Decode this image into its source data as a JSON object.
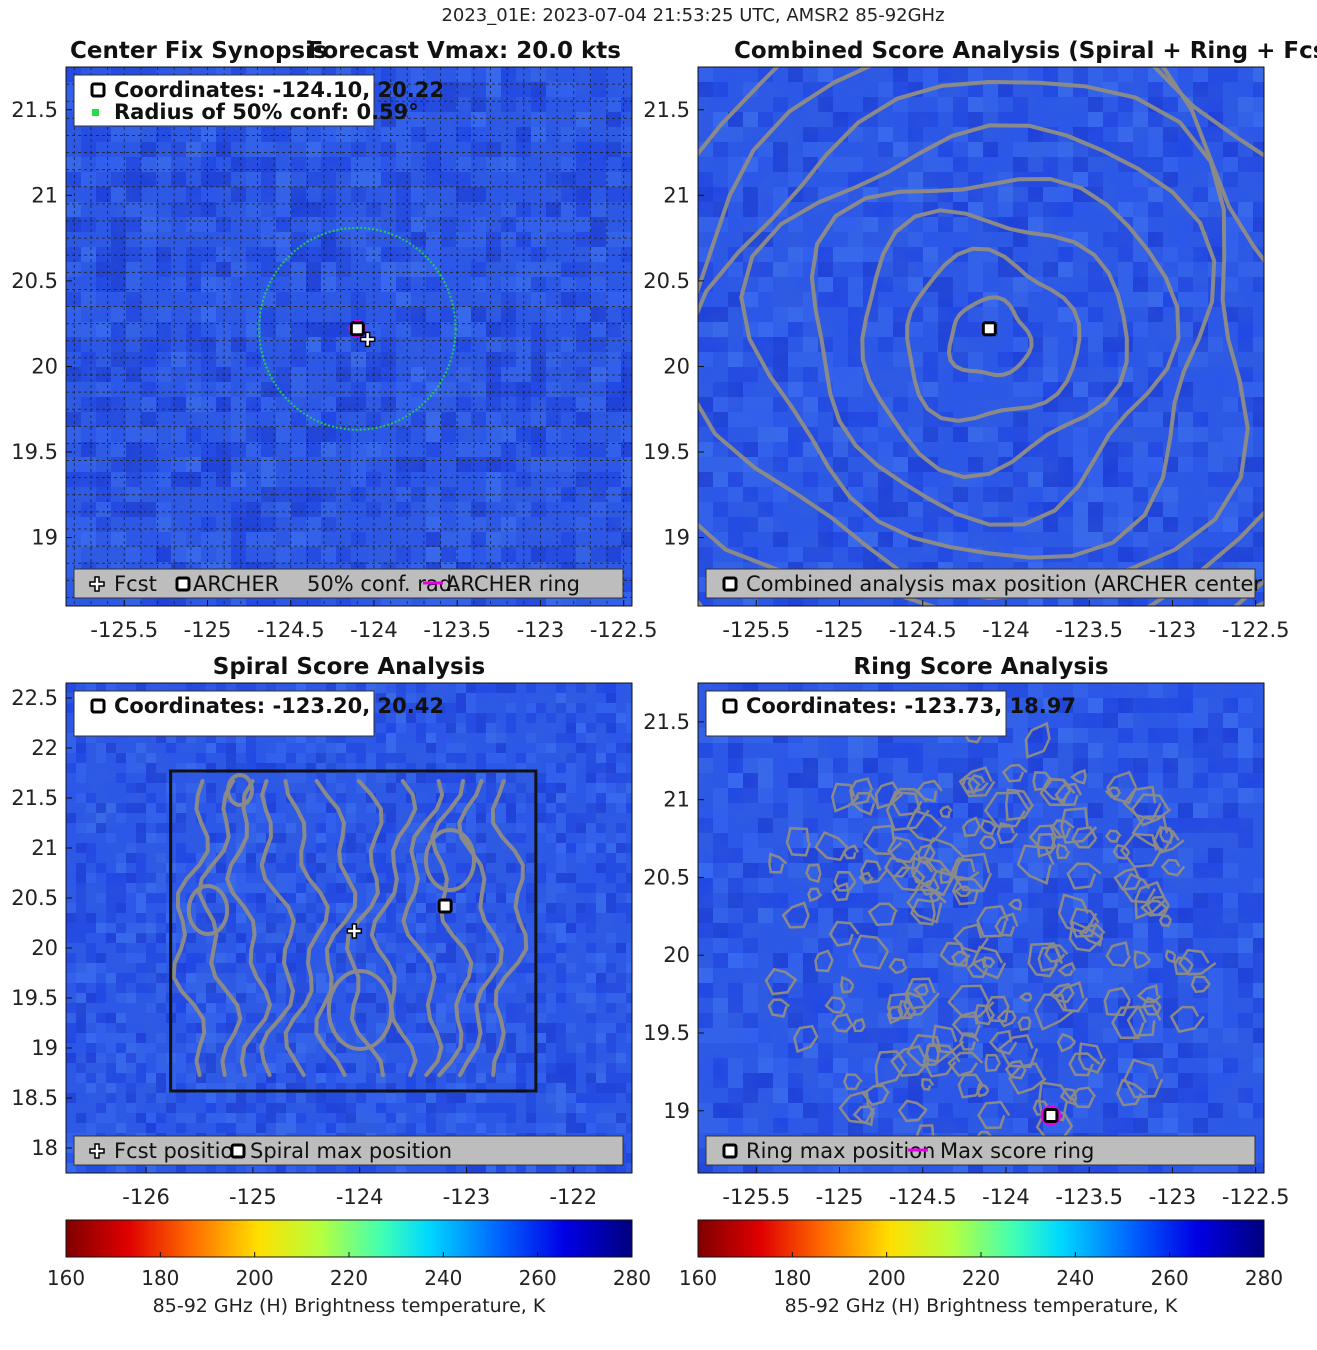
{
  "suptitle": "2023_01E: 2023-07-04 21:53:25 UTC, AMSR2 85-92GHz",
  "colors": {
    "background_tb": "#2a55ec",
    "contour": "#8a8a8a",
    "archer_ring": "#e600e6",
    "conf_circle": "#22cc55",
    "legend_box": "#bdbdbd"
  },
  "chart_data": [
    {
      "id": "center_fix_synopsis",
      "type": "heatmap",
      "title": "Center Fix Synopsis",
      "title_right": "Forecast Vmax: 20.0 kts",
      "xlim": [
        -125.85,
        -122.45
      ],
      "ylim": [
        18.6,
        21.75
      ],
      "x_ticks": [
        -125.5,
        -125,
        -124.5,
        -124,
        -123.5,
        -123,
        -122.5
      ],
      "x_tick_labels": [
        "-125.5",
        "-125",
        "-124.5",
        "-124",
        "-123.5",
        "-123",
        "-122.5"
      ],
      "y_ticks": [
        19,
        19.5,
        20,
        20.5,
        21,
        21.5
      ],
      "y_tick_labels": [
        "19",
        "19.5",
        "20",
        "20.5",
        "21",
        "21.5"
      ],
      "grid": true,
      "info_box": {
        "line1": "Coordinates: -124.10, 20.22",
        "line2": "Radius of 50% conf: 0.59°"
      },
      "legend": {
        "placement": "bottom",
        "items": [
          "Fcst",
          "ARCHER",
          "50% conf. rad.",
          "ARCHER ring"
        ]
      },
      "archer_center": [
        -124.1,
        20.22
      ],
      "forecast_position": [
        -124.05,
        20.17
      ],
      "conf_radius_deg": 0.59
    },
    {
      "id": "combined_score",
      "type": "heatmap",
      "title": "Combined Score Analysis (Spiral + Ring + Fcst_Pe",
      "xlim": [
        -125.85,
        -122.45
      ],
      "ylim": [
        18.6,
        21.75
      ],
      "x_ticks": [
        -125.5,
        -125,
        -124.5,
        -124,
        -123.5,
        -123,
        -122.5
      ],
      "x_tick_labels": [
        "-125.5",
        "-125",
        "-124.5",
        "-124",
        "-123.5",
        "-123",
        "-122.5"
      ],
      "y_ticks": [
        19,
        19.5,
        20,
        20.5,
        21,
        21.5
      ],
      "y_tick_labels": [
        "19",
        "19.5",
        "20",
        "20.5",
        "21",
        "21.5"
      ],
      "grid": false,
      "legend": {
        "placement": "bottom",
        "items": [
          "Combined analysis max position (ARCHER center)"
        ]
      },
      "max_position": [
        -124.1,
        20.22
      ],
      "contour_levels": 9
    },
    {
      "id": "spiral_score",
      "type": "heatmap",
      "title": "Spiral Score Analysis",
      "xlim": [
        -126.75,
        -121.45
      ],
      "ylim": [
        17.75,
        22.65
      ],
      "x_ticks": [
        -126,
        -125,
        -124,
        -123,
        -122
      ],
      "x_tick_labels": [
        "-126",
        "-125",
        "-124",
        "-123",
        "-122"
      ],
      "y_ticks": [
        18,
        18.5,
        19,
        19.5,
        20,
        20.5,
        21,
        21.5,
        22,
        22.5
      ],
      "y_tick_labels": [
        "18",
        "18.5",
        "19",
        "19.5",
        "20",
        "20.5",
        "21",
        "21.5",
        "22",
        "22.5"
      ],
      "grid": false,
      "info_box": {
        "line1": "Coordinates: -123.20, 20.42"
      },
      "legend": {
        "placement": "bottom",
        "items": [
          "Fcst position",
          "Spiral max position"
        ]
      },
      "search_box": {
        "x": [
          -125.77,
          -122.35
        ],
        "y": [
          18.57,
          21.77
        ]
      },
      "max_position": [
        -123.2,
        20.42
      ],
      "forecast_position": [
        -124.05,
        20.17
      ]
    },
    {
      "id": "ring_score",
      "type": "heatmap",
      "title": "Ring Score Analysis",
      "xlim": [
        -125.85,
        -122.45
      ],
      "ylim": [
        18.6,
        21.75
      ],
      "x_ticks": [
        -125.5,
        -125,
        -124.5,
        -124,
        -123.5,
        -123,
        -122.5
      ],
      "x_tick_labels": [
        "-125.5",
        "-125",
        "-124.5",
        "-124",
        "-123.5",
        "-123",
        "-122.5"
      ],
      "y_ticks": [
        19,
        19.5,
        20,
        20.5,
        21,
        21.5
      ],
      "y_tick_labels": [
        "19",
        "19.5",
        "20",
        "20.5",
        "21",
        "21.5"
      ],
      "grid": false,
      "info_box": {
        "line1": "Coordinates: -123.73, 18.97"
      },
      "legend": {
        "placement": "bottom",
        "items": [
          "Ring max position",
          "Max score ring"
        ]
      },
      "max_position": [
        -123.73,
        18.97
      ]
    }
  ],
  "colorbars": [
    {
      "label": "85-92 GHz (H) Brightness temperature, K",
      "range": [
        160,
        280
      ],
      "ticks": [
        160,
        180,
        200,
        220,
        240,
        260,
        280
      ],
      "tick_labels": [
        "160",
        "180",
        "200",
        "220",
        "240",
        "260",
        "280"
      ],
      "colormap": "jet_r"
    },
    {
      "label": "85-92 GHz (H) Brightness temperature, K",
      "range": [
        160,
        280
      ],
      "ticks": [
        160,
        180,
        200,
        220,
        240,
        260,
        280
      ],
      "tick_labels": [
        "160",
        "180",
        "200",
        "220",
        "240",
        "260",
        "280"
      ],
      "colormap": "jet_r"
    }
  ]
}
